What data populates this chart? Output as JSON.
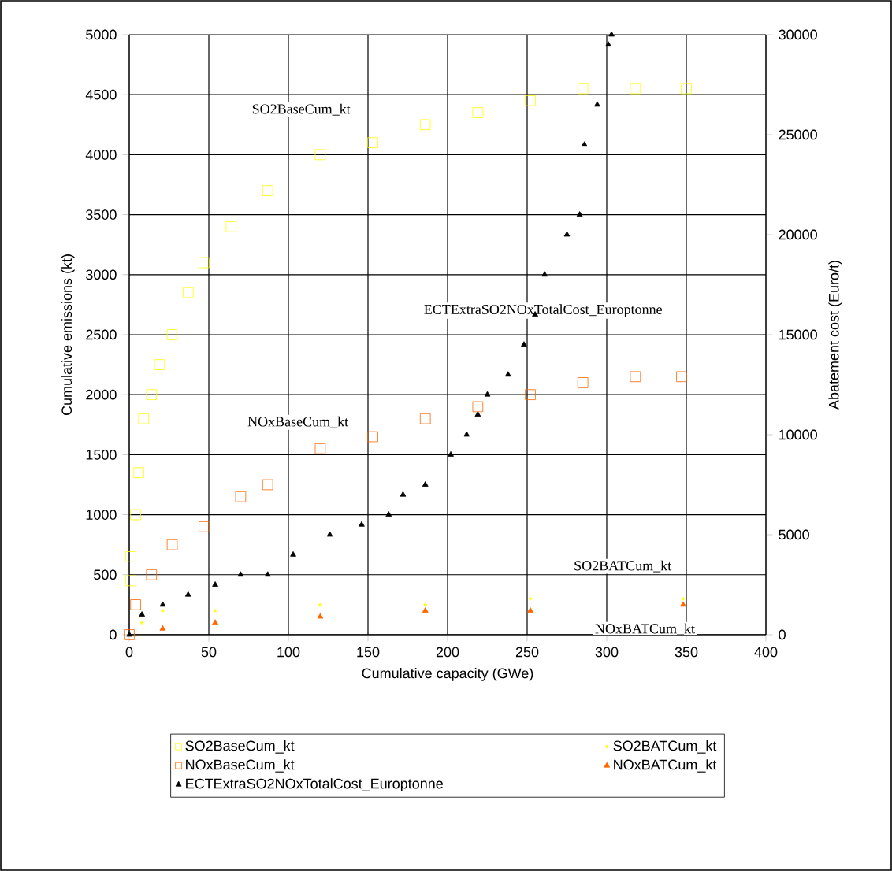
{
  "chart_data": {
    "type": "scatter",
    "xlabel": "Cumulative capacity (GWe)",
    "ylabel": "Cumulative emissions (kt)",
    "y2label": "Abatement cost (Euro/t)",
    "xlim": [
      0,
      400
    ],
    "xticks": [
      0,
      50,
      100,
      150,
      200,
      250,
      300,
      350,
      400
    ],
    "ylim": [
      0,
      5000
    ],
    "yticks": [
      0,
      500,
      1000,
      1500,
      2000,
      2500,
      3000,
      3500,
      4000,
      4500,
      5000
    ],
    "y2lim": [
      0,
      30000
    ],
    "y2ticks": [
      0,
      5000,
      10000,
      15000,
      20000,
      25000,
      30000
    ],
    "grid": true,
    "legend": "bottom",
    "series": [
      {
        "name": "SO2BaseCum_kt",
        "color": "#ffff00",
        "marker": "square",
        "x": [
          1,
          1,
          4,
          6,
          9,
          14,
          19,
          27,
          37,
          47,
          64,
          87,
          120,
          153,
          186,
          219,
          252,
          285,
          318,
          350
        ],
        "values": [
          450,
          650,
          1000,
          1350,
          1800,
          2000,
          2250,
          2500,
          2850,
          3100,
          3400,
          3700,
          4000,
          4100,
          4250,
          4350,
          4450,
          4550,
          4550,
          4550
        ]
      },
      {
        "name": "SO2BATCum_kt",
        "color": "#ffff00",
        "marker": "circle",
        "x": [
          8,
          21,
          54,
          120,
          186,
          252,
          348
        ],
        "values": [
          100,
          200,
          200,
          250,
          250,
          300,
          300
        ]
      },
      {
        "name": "NOxBaseCum_kt",
        "color": "#ff6600",
        "marker": "square",
        "x": [
          0,
          4,
          14,
          27,
          47,
          70,
          87,
          120,
          153,
          186,
          219,
          252,
          285,
          318,
          347
        ],
        "values": [
          0,
          250,
          500,
          750,
          900,
          1150,
          1250,
          1550,
          1650,
          1800,
          1900,
          2000,
          2100,
          2150,
          2150
        ]
      },
      {
        "name": "NOxBATCum_kt",
        "color": "#ff6600",
        "marker": "triangle",
        "x": [
          21,
          54,
          120,
          186,
          252,
          348
        ],
        "values": [
          50,
          100,
          150,
          200,
          200,
          250
        ]
      },
      {
        "name": "ECTExtraSO2NOxTotalCost_Europtonne",
        "color": "#000000",
        "marker": "triangle",
        "axis": "y2",
        "x": [
          0,
          8,
          21,
          37,
          54,
          70,
          87,
          103,
          126,
          146,
          163,
          172,
          186,
          202,
          212,
          219,
          225,
          238,
          248,
          255,
          261,
          275,
          283,
          286,
          294,
          301,
          303
        ],
        "values": [
          0,
          1000,
          1500,
          2000,
          2500,
          3000,
          3000,
          4000,
          5000,
          5500,
          6000,
          7000,
          7500,
          9000,
          10000,
          11000,
          12000,
          13000,
          14500,
          16000,
          18000,
          20000,
          21000,
          24500,
          26500,
          29500,
          30000
        ]
      }
    ],
    "annotations": [
      "SO2BaseCum_kt",
      "NOxBaseCum_kt",
      "ECTExtraSO2NOxTotalCost_Europtonne",
      "SO2BATCum_kt",
      "NOxBATCum_kt"
    ]
  }
}
